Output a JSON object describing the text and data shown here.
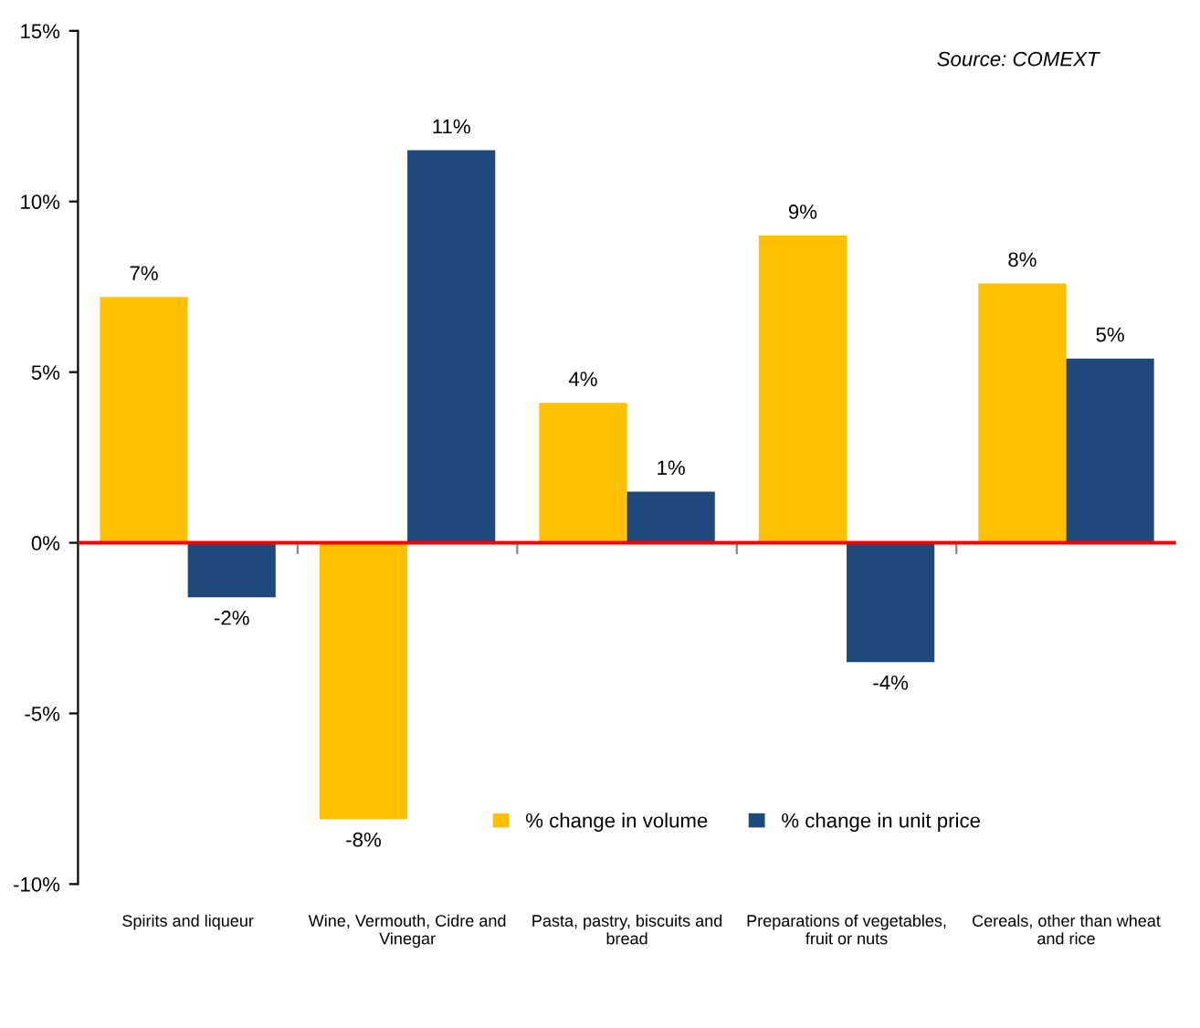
{
  "chart_data": {
    "type": "bar",
    "categories": [
      "Spirits and liqueur",
      "Wine, Vermouth, Cidre and\nVinegar",
      "Pasta, pastry, biscuits and\nbread",
      "Preparations of vegetables,\nfruit or nuts",
      "Cereals, other than wheat\nand rice"
    ],
    "series": [
      {
        "name": "% change in volume",
        "color": "#ffc000",
        "values": [
          7.2,
          -8.1,
          4.1,
          9.0,
          7.6
        ],
        "value_labels": [
          "7%",
          "-8%",
          "4%",
          "9%",
          "8%"
        ]
      },
      {
        "name": "% change in unit price",
        "color": "#1f497d",
        "values": [
          -1.6,
          11.5,
          1.5,
          -3.5,
          5.4
        ],
        "value_labels": [
          "-2%",
          "11%",
          "1%",
          "-4%",
          "5%"
        ]
      }
    ],
    "ylim": [
      -10,
      15
    ],
    "yticks": [
      {
        "value": -10,
        "label": "-10%"
      },
      {
        "value": -5,
        "label": "-5%"
      },
      {
        "value": 0,
        "label": "0%"
      },
      {
        "value": 5,
        "label": "5%"
      },
      {
        "value": 10,
        "label": "10%"
      },
      {
        "value": 15,
        "label": "15%"
      }
    ],
    "ref_lines": [
      {
        "axis": "y",
        "value": 0,
        "label": null,
        "color": "#ff0000"
      }
    ],
    "annotations": [
      "Source: COMEXT"
    ],
    "legend": "bottom",
    "grid": false
  }
}
